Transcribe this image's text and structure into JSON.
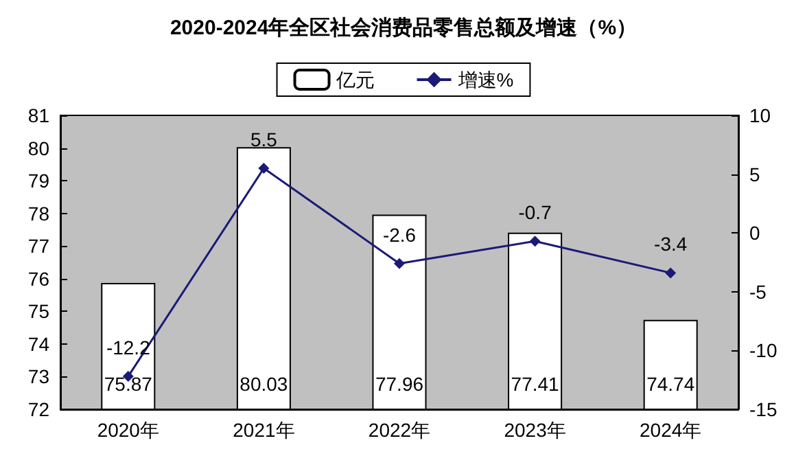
{
  "chart_data": {
    "type": "bar",
    "title": "2020-2024年全区社会消费品零售总额及增速（%）",
    "categories": [
      "2020年",
      "2021年",
      "2022年",
      "2023年",
      "2024年"
    ],
    "series": [
      {
        "name": "亿元",
        "color": "#ffffff",
        "values": [
          75.87,
          80.03,
          77.96,
          77.41,
          74.74
        ]
      },
      {
        "name": "增速%",
        "type": "line",
        "axis": "y2",
        "color": "#1a1a78",
        "values": [
          -12.2,
          5.5,
          -2.6,
          -0.7,
          -3.4
        ]
      }
    ],
    "ylim": [
      72,
      81
    ],
    "yticks": [
      72,
      73,
      74,
      75,
      76,
      77,
      78,
      79,
      80,
      81
    ],
    "y2lim": [
      -15,
      10
    ],
    "y2ticks": [
      -15,
      -10,
      -5,
      0,
      5,
      10
    ],
    "data_labels": true,
    "legend": "top",
    "marker": "diamond",
    "line_style": "solid"
  }
}
